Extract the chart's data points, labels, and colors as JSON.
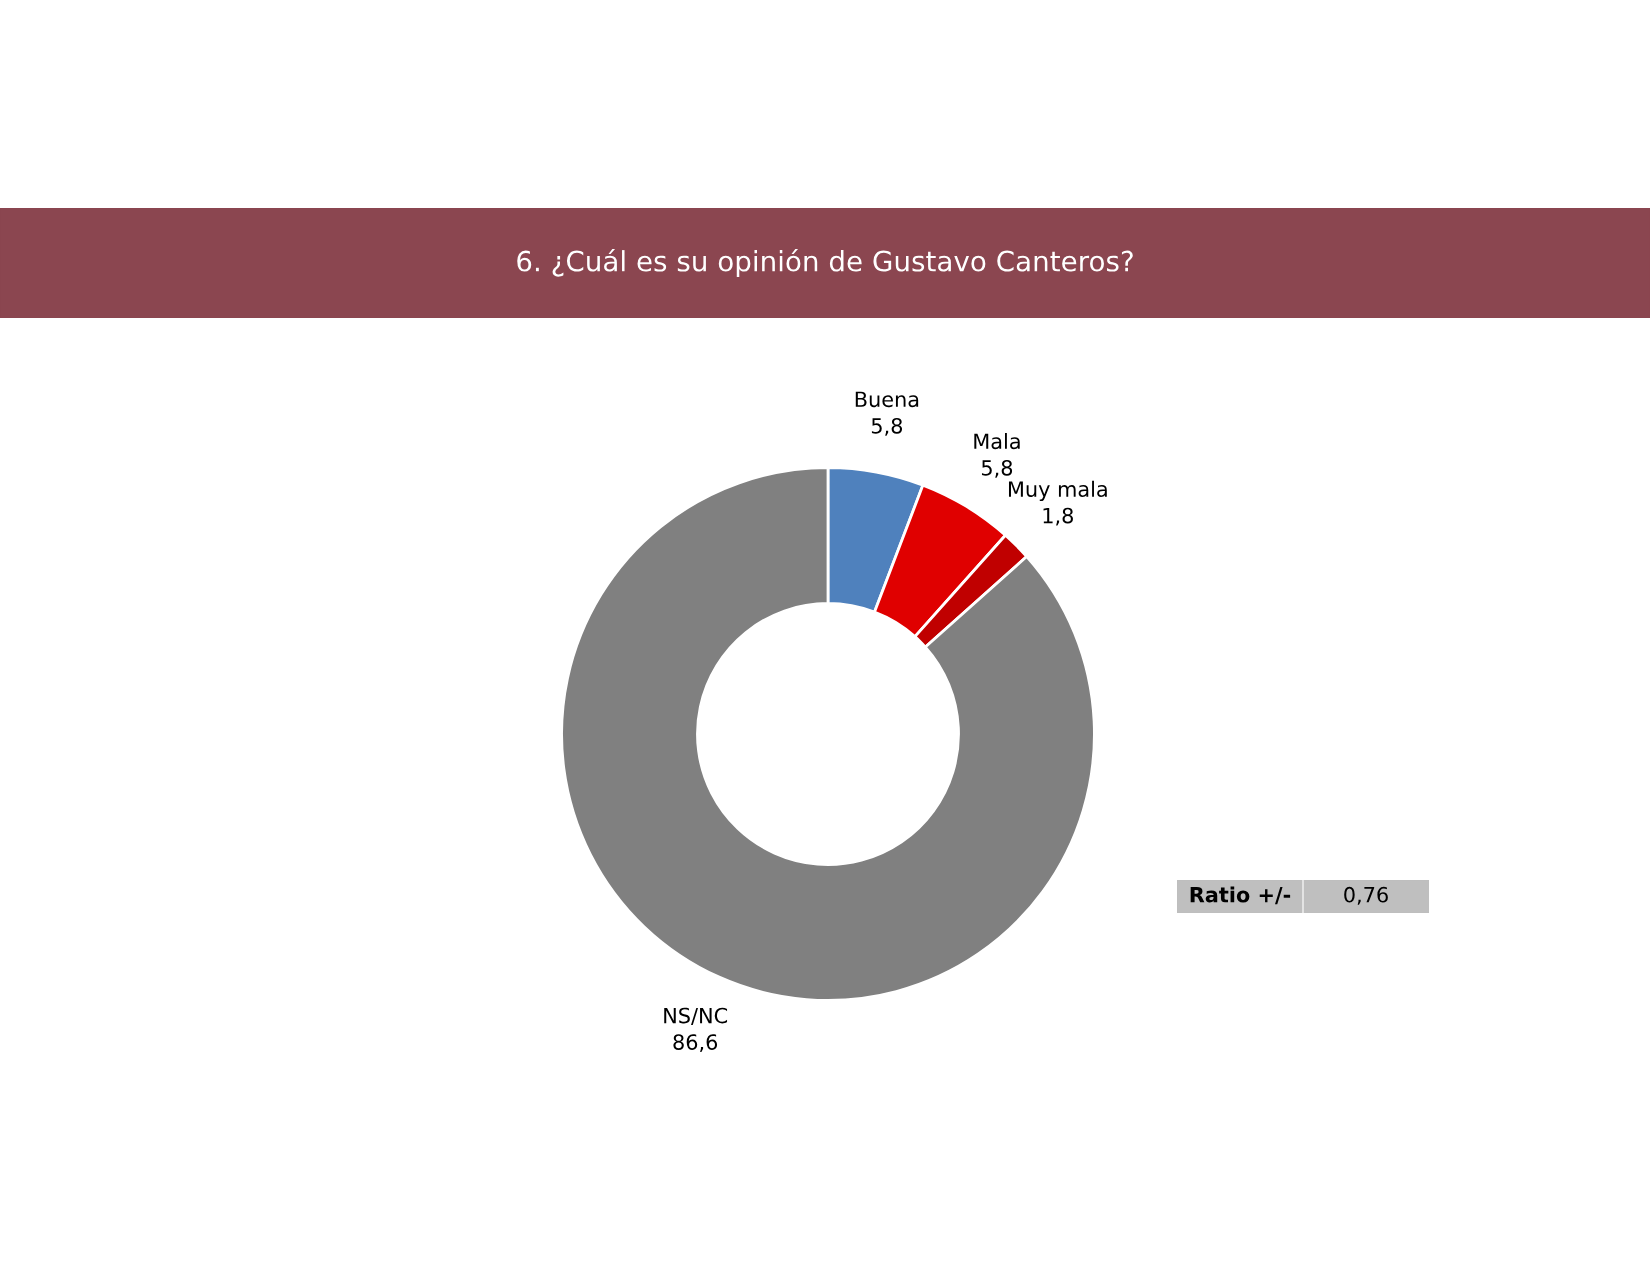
{
  "chart_data": {
    "type": "donut",
    "title": "6. ¿Cuál es su opinión de Gustavo Canteros?",
    "categories": [
      "Buena",
      "Mala",
      "Muy mala",
      "NS/NC"
    ],
    "values": [
      5.8,
      5.8,
      1.8,
      86.6
    ],
    "value_labels": [
      "5,8",
      "5,8",
      "1,8",
      "86,6"
    ],
    "colors": [
      "#4f81bd",
      "#e00000",
      "#c00000",
      "#808080"
    ],
    "annotations": [
      "Ratio +/-",
      "0,76"
    ],
    "legend": false
  }
}
